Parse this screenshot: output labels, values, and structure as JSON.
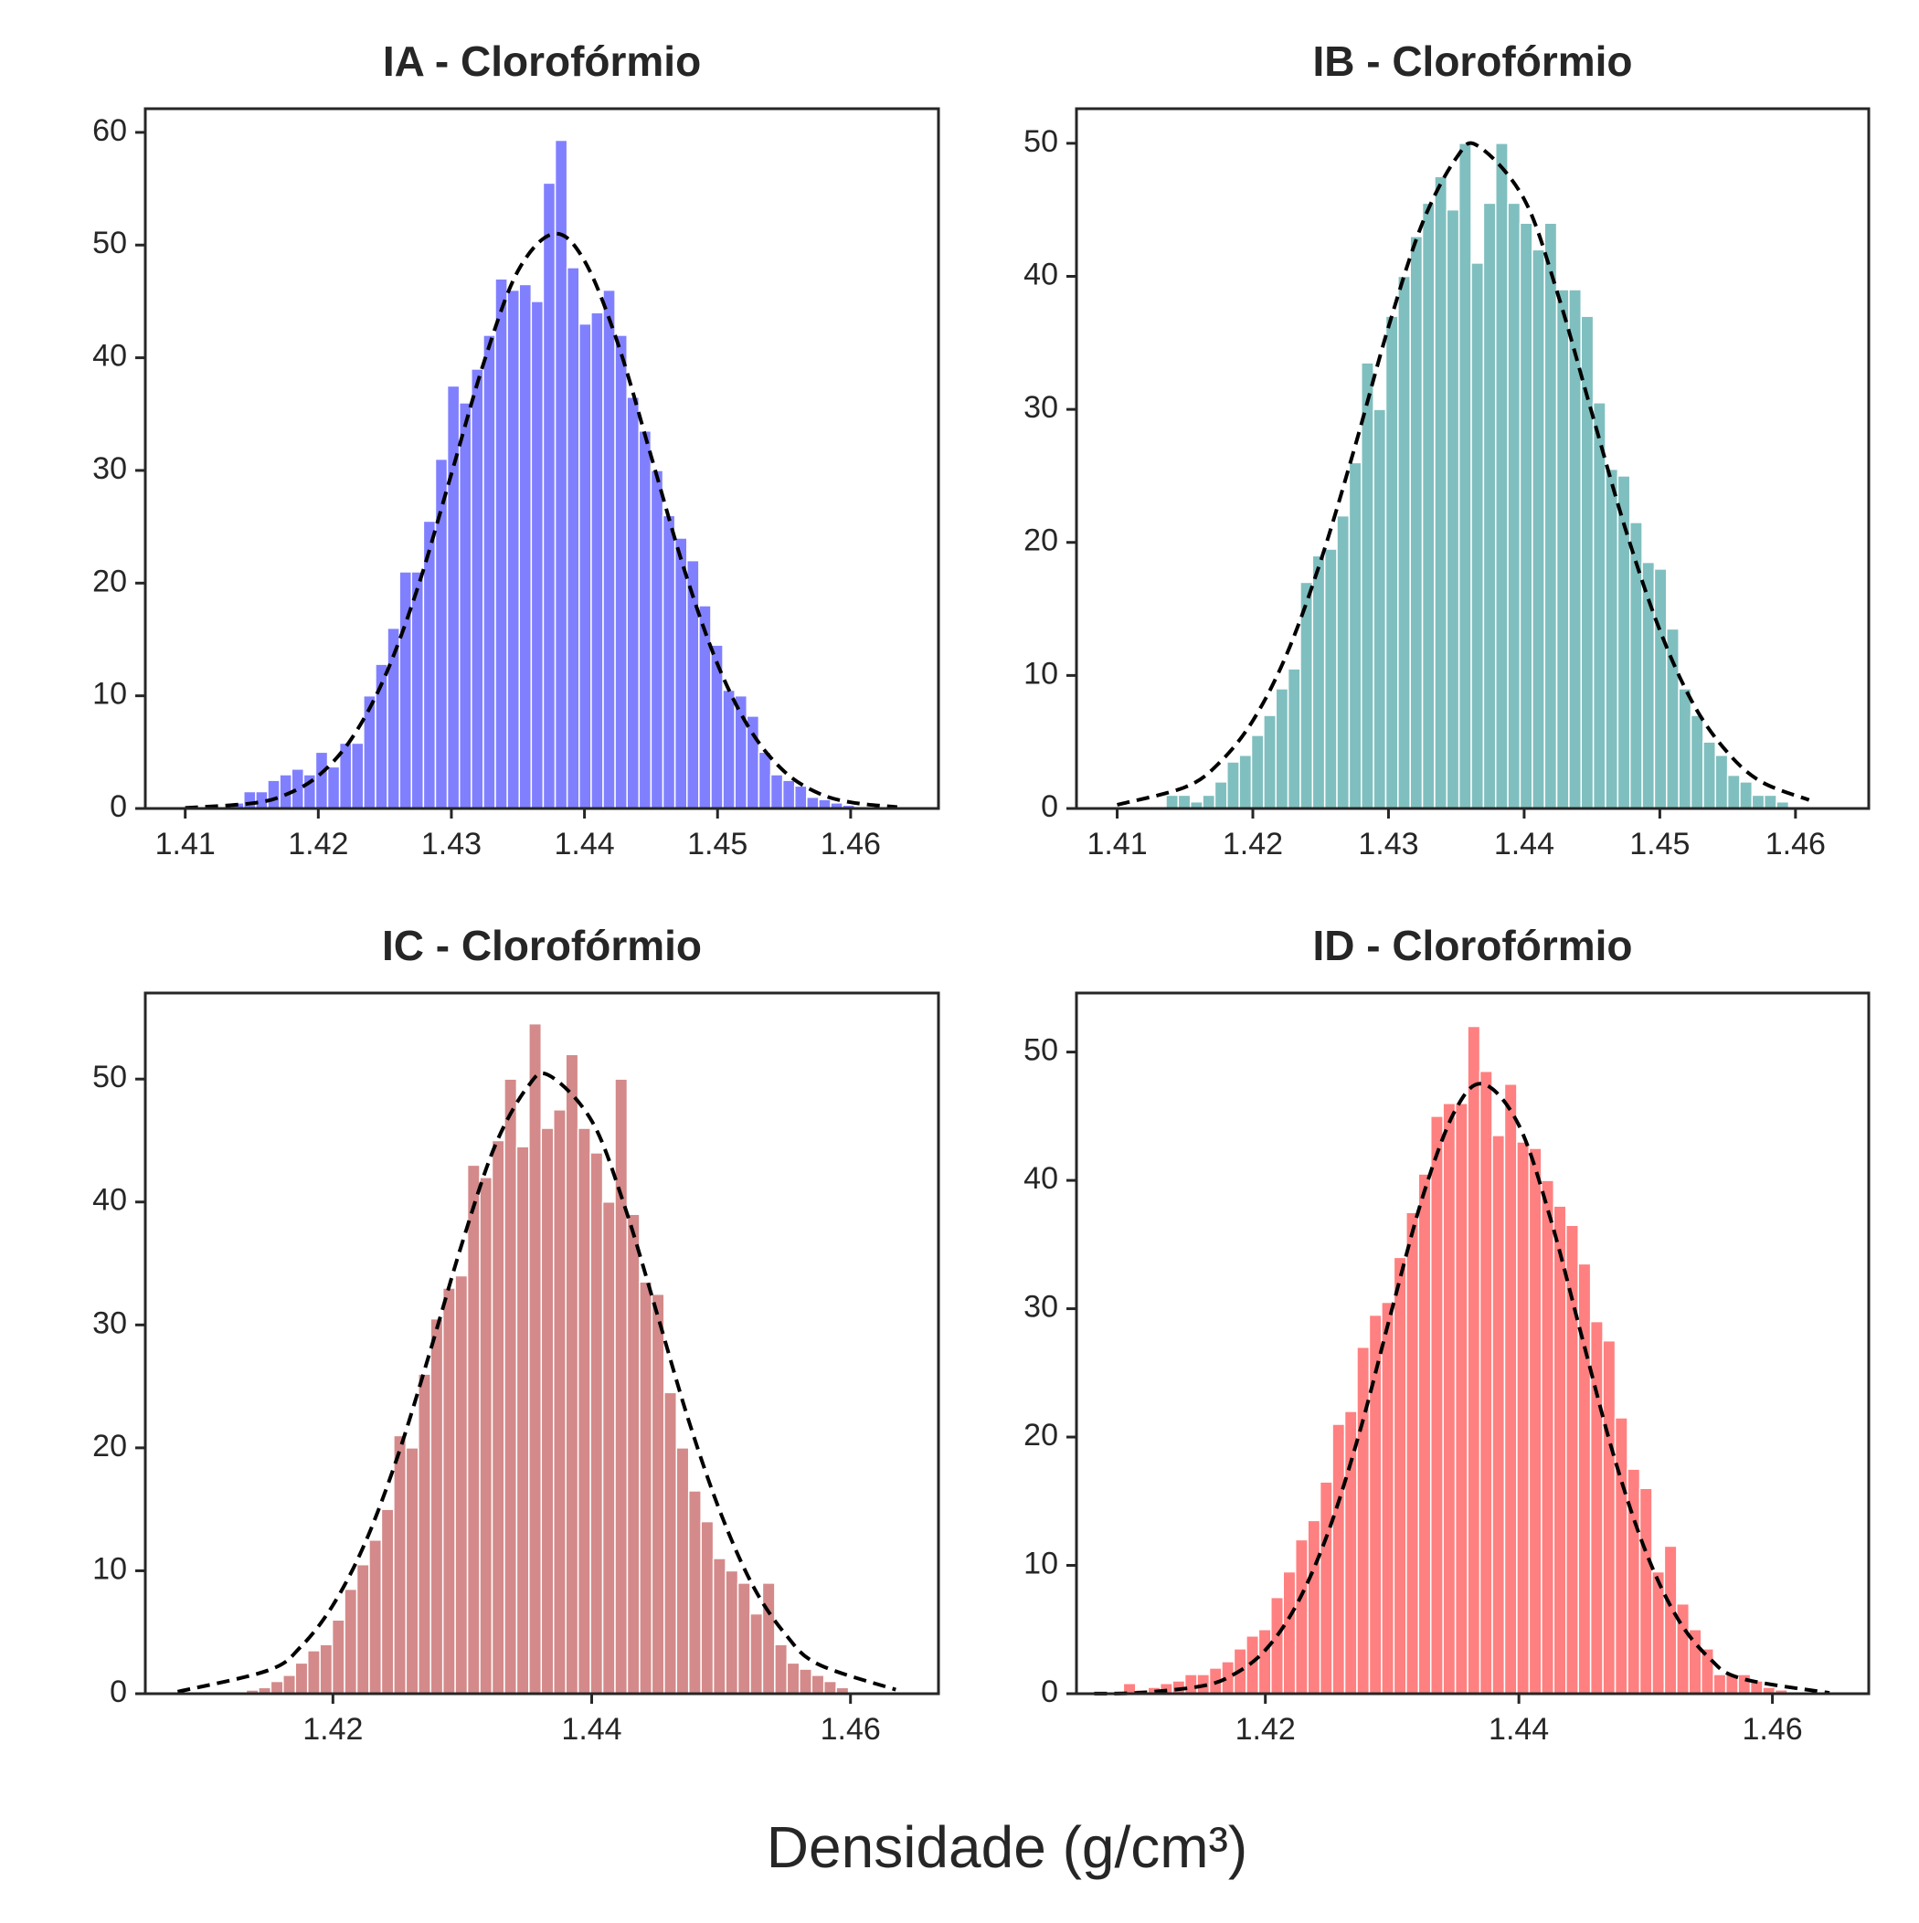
{
  "chart_data": [
    {
      "type": "histogram",
      "title": "IA - Clorofórmio",
      "color": "#8080ff",
      "bins": [
        1.4135,
        1.4144,
        1.4153,
        1.4162,
        1.4171,
        1.418,
        1.4189,
        1.4198,
        1.4207,
        1.4216,
        1.4225,
        1.4234,
        1.4243,
        1.4252,
        1.4261,
        1.427,
        1.4279,
        1.4288,
        1.4297,
        1.4306,
        1.4315,
        1.4324,
        1.4333,
        1.4342,
        1.4351,
        1.436,
        1.4369,
        1.4378,
        1.4387,
        1.4396,
        1.4405,
        1.4414,
        1.4423,
        1.4432,
        1.4441,
        1.445,
        1.4459,
        1.4468,
        1.4477,
        1.4486,
        1.4495,
        1.4504,
        1.4513,
        1.4522,
        1.4531,
        1.454,
        1.4549,
        1.4558,
        1.4567,
        1.4576,
        1.4585,
        1.4594,
        1.4603
      ],
      "values": [
        0.5,
        1.5,
        1.5,
        2.5,
        3,
        3.5,
        3,
        5,
        3.7,
        5.8,
        5.8,
        10,
        12.8,
        16,
        21,
        21,
        25.5,
        31,
        37.5,
        36,
        39,
        42,
        47,
        46,
        46.5,
        45,
        55.5,
        59.3,
        48,
        43,
        44,
        46,
        42,
        36.5,
        33.5,
        30,
        26,
        24,
        22,
        18,
        14.5,
        10.5,
        10,
        8.2,
        5,
        3,
        2.5,
        2,
        1,
        0.8,
        0.5,
        0.3
      ],
      "curve": {
        "color": "#000000",
        "style": "dashed",
        "x": [
          1.41,
          1.415,
          1.4175,
          1.42,
          1.4225,
          1.425,
          1.4275,
          1.43,
          1.4325,
          1.435,
          1.4377,
          1.44,
          1.4425,
          1.445,
          1.4475,
          1.45,
          1.4525,
          1.455,
          1.4575,
          1.46,
          1.4635
        ],
        "values": [
          0.05,
          0.46,
          1.2,
          2.9,
          6.2,
          11.7,
          19.7,
          29.7,
          39.8,
          47.7,
          51,
          48.6,
          41.3,
          31.3,
          21.2,
          12.8,
          6.9,
          3.3,
          1.4,
          0.55,
          0.12
        ]
      },
      "xlim": [
        1.407,
        1.4666
      ],
      "ylim": [
        0,
        62.1
      ],
      "xticks": [
        1.41,
        1.42,
        1.43,
        1.44,
        1.45,
        1.46
      ],
      "yticks": [
        0,
        10,
        20,
        30,
        40,
        50,
        60
      ]
    },
    {
      "type": "histogram",
      "title": "IB - Clorofórmio",
      "color": "#80bfbf",
      "bins": [
        1.4136,
        1.4145,
        1.4154,
        1.4163,
        1.4172,
        1.4181,
        1.419,
        1.4199,
        1.4208,
        1.4217,
        1.4226,
        1.4235,
        1.4244,
        1.4253,
        1.4262,
        1.4271,
        1.428,
        1.4289,
        1.4298,
        1.4307,
        1.4316,
        1.4325,
        1.4334,
        1.4343,
        1.4352,
        1.4361,
        1.437,
        1.4379,
        1.4388,
        1.4397,
        1.4406,
        1.4415,
        1.4424,
        1.4433,
        1.4442,
        1.4451,
        1.446,
        1.4469,
        1.4478,
        1.4487,
        1.4496,
        1.4505,
        1.4514,
        1.4523,
        1.4532,
        1.4541,
        1.455,
        1.4559,
        1.4568,
        1.4577,
        1.4586,
        1.4595
      ],
      "values": [
        1,
        1,
        0.5,
        1,
        2,
        3.5,
        4,
        5.5,
        7,
        9,
        10.5,
        17,
        19,
        19.5,
        22,
        26,
        33.5,
        30,
        37,
        40,
        43,
        45.5,
        47.5,
        45,
        50,
        41,
        45.5,
        50,
        45.5,
        44,
        42,
        44,
        39,
        39,
        37,
        30.5,
        25.5,
        25,
        21.5,
        18.5,
        18,
        13.5,
        9,
        7,
        5,
        4,
        2.5,
        2,
        1,
        1,
        0.5
      ],
      "curve": {
        "color": "#000000",
        "style": "dashed",
        "x": [
          1.41,
          1.415,
          1.4175,
          1.42,
          1.4225,
          1.425,
          1.4275,
          1.43,
          1.4325,
          1.435,
          1.4366,
          1.44,
          1.4425,
          1.445,
          1.4475,
          1.45,
          1.4525,
          1.455,
          1.4575,
          1.461
        ],
        "values": [
          0.28,
          1.6,
          3.4,
          6.6,
          11.6,
          18.6,
          27.1,
          36.2,
          44,
          48.9,
          49.8,
          45.8,
          38.6,
          29.7,
          20.9,
          13.4,
          7.8,
          4.2,
          2,
          0.64
        ]
      },
      "xlim": [
        1.407,
        1.4654
      ],
      "ylim": [
        0,
        52.6
      ],
      "xticks": [
        1.41,
        1.42,
        1.43,
        1.44,
        1.45,
        1.46
      ],
      "yticks": [
        0,
        10,
        20,
        30,
        40,
        50
      ]
    },
    {
      "type": "histogram",
      "title": "IC - Clorofórmio",
      "color": "#d48a8a",
      "bins": [
        1.4133,
        1.41425,
        1.4152,
        1.41615,
        1.4171,
        1.41805,
        1.419,
        1.41995,
        1.4209,
        1.42185,
        1.4228,
        1.42375,
        1.4247,
        1.42565,
        1.4266,
        1.42755,
        1.4285,
        1.42945,
        1.4304,
        1.43135,
        1.4323,
        1.43325,
        1.4342,
        1.43515,
        1.4361,
        1.43705,
        1.438,
        1.43895,
        1.4399,
        1.44085,
        1.4418,
        1.44275,
        1.4437,
        1.44465,
        1.4456,
        1.44655,
        1.4475,
        1.44845,
        1.4494,
        1.45035,
        1.4513,
        1.45225,
        1.4532,
        1.45415,
        1.4551,
        1.45605,
        1.457,
        1.45795,
        1.4589,
        1.45985
      ],
      "values": [
        0.3,
        0.5,
        1,
        1.5,
        2.5,
        3.5,
        4,
        6,
        8.5,
        10.5,
        12.5,
        15,
        21,
        20,
        26,
        30.5,
        33,
        34,
        43,
        42,
        45,
        50,
        44.5,
        54.5,
        46,
        47.5,
        52,
        46,
        44,
        40,
        50,
        39,
        33.5,
        32.5,
        24.5,
        20,
        16.5,
        14,
        11,
        10,
        9,
        6.5,
        9,
        4,
        2.5,
        2,
        1.5,
        1,
        0.5
      ],
      "curve": {
        "color": "#000000",
        "style": "dashed",
        "x": [
          1.408,
          1.415,
          1.4175,
          1.42,
          1.4225,
          1.425,
          1.4275,
          1.43,
          1.4325,
          1.435,
          1.4367,
          1.44,
          1.4425,
          1.445,
          1.4475,
          1.45,
          1.4525,
          1.455,
          1.4575,
          1.4635
        ],
        "values": [
          0.16,
          1.9,
          3.8,
          7.2,
          12.3,
          19.3,
          27.8,
          36.7,
          44.5,
          49.3,
          50.3,
          46.6,
          39.8,
          31.1,
          22.2,
          14.6,
          8.7,
          4.8,
          2.4,
          0.33
        ]
      },
      "xlim": [
        1.4055,
        1.4668
      ],
      "ylim": [
        0,
        57
      ],
      "xticks": [
        1.42,
        1.44,
        1.46
      ],
      "yticks": [
        0,
        10,
        20,
        30,
        40,
        50
      ]
    },
    {
      "type": "histogram",
      "title": "ID - Clorofórmio",
      "color": "#ff8080",
      "bins": [
        1.4088,
        1.40977,
        1.41074,
        1.41171,
        1.41268,
        1.41365,
        1.41462,
        1.41559,
        1.41656,
        1.41753,
        1.4185,
        1.41947,
        1.42044,
        1.42141,
        1.42238,
        1.42335,
        1.42432,
        1.42529,
        1.42626,
        1.42723,
        1.4282,
        1.42917,
        1.43014,
        1.43111,
        1.43208,
        1.43305,
        1.43402,
        1.43499,
        1.43596,
        1.43693,
        1.4379,
        1.43887,
        1.43984,
        1.44081,
        1.44178,
        1.44275,
        1.44372,
        1.44469,
        1.44566,
        1.44663,
        1.4476,
        1.44857,
        1.44954,
        1.45051,
        1.45148,
        1.45245,
        1.45342,
        1.45439,
        1.45536,
        1.45633,
        1.4573,
        1.45827,
        1.45924,
        1.46021,
        1.46118
      ],
      "values": [
        0.8,
        0.3,
        0.5,
        0.8,
        1,
        1.5,
        1.5,
        2,
        2.5,
        3.5,
        4.5,
        5,
        7.5,
        9.5,
        12,
        13.5,
        16.5,
        21,
        22,
        27,
        29.5,
        30.5,
        34,
        37.5,
        40.5,
        45,
        46,
        46,
        52,
        48.5,
        43.5,
        47.5,
        43,
        42.5,
        40,
        38,
        36.5,
        33.5,
        29,
        27.5,
        21.5,
        17.5,
        16,
        9.5,
        11.5,
        7,
        5,
        3.5,
        1.5,
        1.5,
        1.5,
        1,
        0.5,
        0.3
      ],
      "curve": {
        "color": "#000000",
        "style": "dashed",
        "x": [
          1.4065,
          1.41,
          1.415,
          1.4175,
          1.42,
          1.4225,
          1.425,
          1.4275,
          1.43,
          1.4325,
          1.435,
          1.4372,
          1.44,
          1.4425,
          1.445,
          1.4475,
          1.45,
          1.4525,
          1.455,
          1.4575,
          1.4645
        ],
        "values": [
          0.01,
          0.07,
          0.6,
          1.5,
          3.4,
          7,
          12.7,
          20.6,
          30,
          39,
          45.5,
          47.5,
          44.3,
          37,
          27.7,
          18.5,
          11.1,
          5.9,
          2.8,
          1.2,
          0.06
        ]
      },
      "xlim": [
        1.4051,
        1.4676
      ],
      "ylim": [
        0,
        54.6
      ],
      "xticks": [
        1.42,
        1.44,
        1.46
      ],
      "yticks": [
        0,
        10,
        20,
        30,
        40,
        50
      ]
    }
  ],
  "xlabel": "Densidade (g/cm³)"
}
